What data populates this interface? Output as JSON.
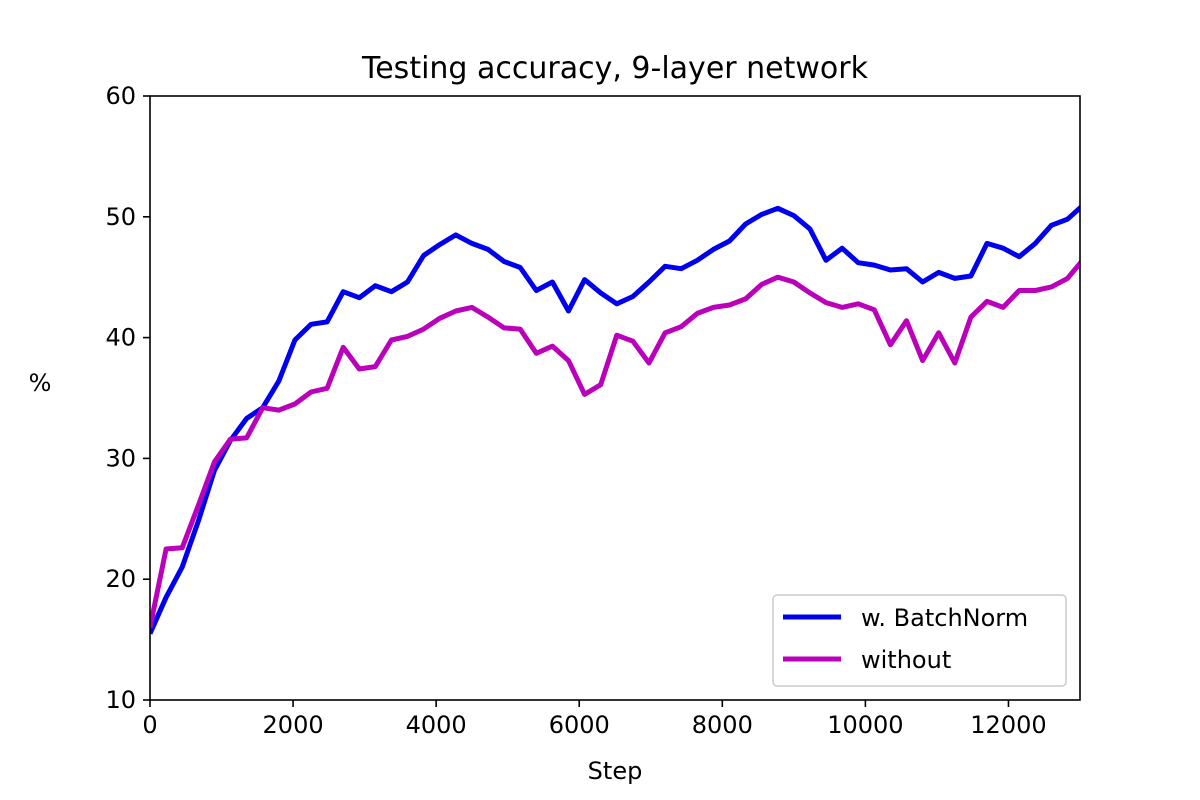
{
  "chart_data": {
    "type": "line",
    "title": "Testing accuracy, 9-layer network",
    "xlabel": "Step",
    "ylabel": "%",
    "xlim": [
      0,
      13000
    ],
    "ylim": [
      10,
      60
    ],
    "xticks": [
      0,
      2000,
      4000,
      6000,
      8000,
      10000,
      12000
    ],
    "yticks": [
      10,
      20,
      30,
      40,
      50,
      60
    ],
    "grid": false,
    "legend_position": "lower-right",
    "x": [
      0,
      225,
      450,
      675,
      900,
      1125,
      1350,
      1575,
      1800,
      2025,
      2250,
      2475,
      2700,
      2925,
      3150,
      3375,
      3600,
      3825,
      4050,
      4275,
      4500,
      4725,
      4950,
      5175,
      5400,
      5625,
      5850,
      6075,
      6300,
      6525,
      6750,
      6975,
      7200,
      7425,
      7650,
      7875,
      8100,
      8325,
      8550,
      8775,
      9000,
      9225,
      9450,
      9675,
      9900,
      10125,
      10350,
      10575,
      10800,
      11025,
      11250,
      11475,
      11700,
      11925,
      12150,
      12375,
      12600,
      12825,
      13050
    ],
    "series": [
      {
        "name": "w. BatchNorm",
        "color": "#0000ee",
        "values": [
          15.5,
          18.5,
          21.0,
          24.8,
          29.0,
          31.5,
          33.3,
          34.2,
          36.4,
          39.8,
          41.1,
          41.3,
          43.8,
          43.3,
          44.3,
          43.8,
          44.6,
          46.8,
          47.7,
          48.5,
          47.8,
          47.3,
          46.3,
          45.8,
          43.9,
          44.6,
          42.2,
          44.8,
          43.7,
          42.8,
          43.4,
          44.6,
          45.9,
          45.7,
          46.4,
          47.3,
          48.0,
          49.4,
          50.2,
          50.7,
          50.1,
          49.0,
          46.4,
          47.4,
          46.2,
          46.0,
          45.6,
          45.7,
          44.6,
          45.4,
          44.9,
          45.1,
          47.8,
          47.4,
          46.7,
          47.8,
          49.3,
          49.8,
          51.0
        ]
      },
      {
        "name": "without",
        "color": "#bb00bb",
        "values": [
          16.0,
          22.5,
          22.6,
          26.1,
          29.7,
          31.6,
          31.7,
          34.2,
          34.0,
          34.5,
          35.5,
          35.8,
          39.2,
          37.4,
          37.6,
          39.8,
          40.1,
          40.7,
          41.6,
          42.2,
          42.5,
          41.7,
          40.8,
          40.7,
          38.7,
          39.3,
          38.1,
          35.3,
          36.1,
          40.2,
          39.7,
          37.9,
          40.4,
          40.9,
          42.0,
          42.5,
          42.7,
          43.2,
          44.4,
          45.0,
          44.6,
          43.7,
          42.9,
          42.5,
          42.8,
          42.3,
          39.4,
          41.4,
          38.1,
          40.4,
          37.9,
          41.7,
          43.0,
          42.5,
          43.9,
          43.9,
          44.2,
          44.9,
          46.5
        ]
      }
    ]
  }
}
